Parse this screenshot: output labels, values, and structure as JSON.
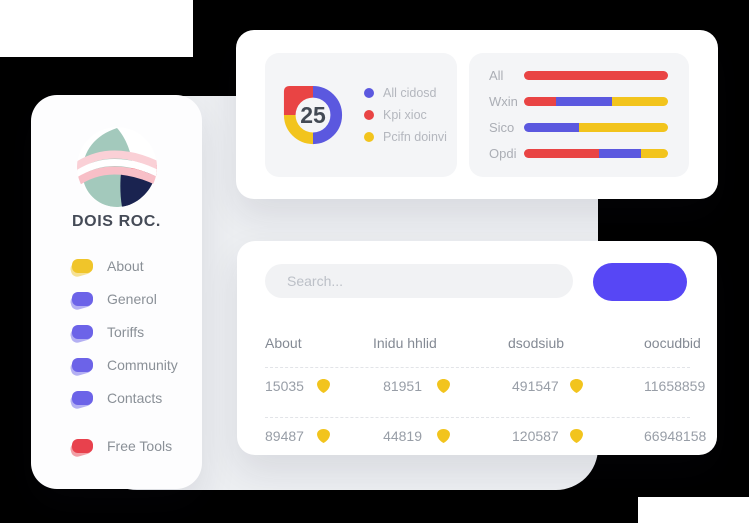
{
  "palette": {
    "background": "#000000",
    "gray_panel": "#EDEFF2",
    "card": "#FFFFFF",
    "inner_panel": "#F4F5F7",
    "indigo": "#5B58DF",
    "red": "#E94444",
    "yellow": "#F2C41D",
    "button_blue": "#5747F5"
  },
  "sidebar": {
    "brand": "DOIS ROC.",
    "items": [
      {
        "label": "About",
        "color": "#F0C52A"
      },
      {
        "label": "Generol",
        "color": "#6C63E8"
      },
      {
        "label": "Toriffs",
        "color": "#6C63E8"
      },
      {
        "label": "Community",
        "color": "#6C63E8"
      },
      {
        "label": "Contacts",
        "color": "#6C63E8"
      }
    ],
    "footer_item": {
      "label": "Free Tools",
      "color": "#E8414D"
    }
  },
  "chart_data": [
    {
      "type": "pie",
      "style": "donut",
      "center_value": "25",
      "slices": [
        {
          "label": "All cidosd",
          "value": 50,
          "color": "#5B58DF"
        },
        {
          "label": "Pcifn doinvi",
          "value": 25,
          "color": "#F2C41D"
        },
        {
          "label": "Kpi xioc",
          "value": 25,
          "color": "#E94444",
          "square_outer_corner": true
        }
      ],
      "legend": [
        {
          "label": "All cidosd",
          "color": "#5B58DF"
        },
        {
          "label": "Kpi xioc",
          "color": "#E94444"
        },
        {
          "label": "Pcifn doinvi",
          "color": "#F2C41D"
        }
      ],
      "legend_position": "right"
    },
    {
      "type": "bar",
      "orientation": "horizontal",
      "stacked": true,
      "categories": [
        "All",
        "Wxin",
        "Sico",
        "Opdi"
      ],
      "series": [
        {
          "name": "Kpi xioc",
          "color": "#E94444",
          "values": [
            100,
            22,
            0,
            52
          ]
        },
        {
          "name": "All cidosd",
          "color": "#5B58DF",
          "values": [
            0,
            39,
            38,
            29
          ]
        },
        {
          "name": "Pcifn doinvi",
          "color": "#F2C41D",
          "values": [
            0,
            39,
            62,
            19
          ]
        }
      ],
      "xlim": [
        0,
        100
      ],
      "grid": false
    }
  ],
  "table_card": {
    "search": {
      "placeholder": "Search..."
    },
    "button": {
      "label": ""
    },
    "columns": [
      "About",
      "Inidu hhlid",
      "dsodsiub",
      "oocudbid"
    ],
    "rows": [
      {
        "cells": [
          "15035",
          "81951",
          "491547",
          "11658859"
        ]
      },
      {
        "cells": [
          "89487",
          "44819",
          "120587",
          "66948158"
        ]
      }
    ],
    "cell_icon": "shield-icon",
    "cell_icon_color": "#F2C41D"
  }
}
